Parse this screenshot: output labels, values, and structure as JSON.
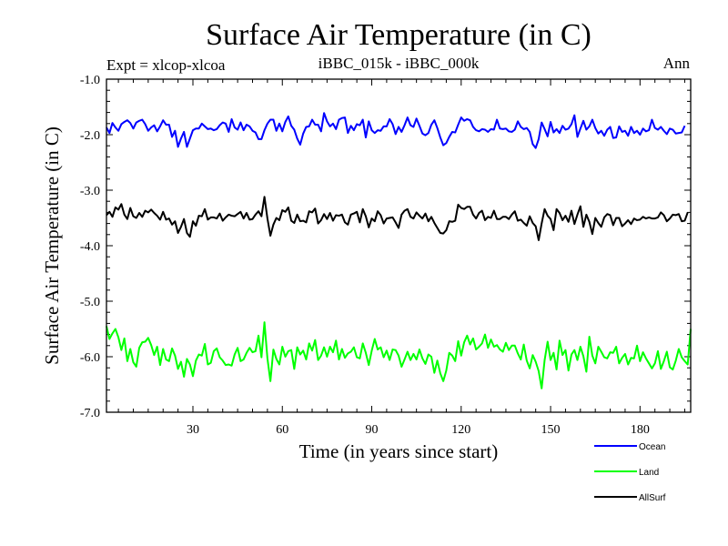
{
  "chart_data": {
    "type": "line",
    "title": "Surface Air Temperature (in C)",
    "subtitle_left": "Expt = xlcop-xlcoa",
    "subtitle_center": "iBBC_015k - iBBC_000k",
    "subtitle_right": "Ann",
    "xlabel": "Time (in years since start)",
    "ylabel": "Surface Air Temperature (in C)",
    "xlim": [
      1,
      197
    ],
    "ylim": [
      -7.0,
      -1.0
    ],
    "xticks": [
      30,
      60,
      90,
      120,
      150,
      180
    ],
    "yticks": [
      -1.0,
      -2.0,
      -3.0,
      -4.0,
      -5.0,
      -6.0,
      -7.0
    ],
    "ytick_labels": [
      "-1.0",
      "-2.0",
      "-3.0",
      "-4.0",
      "-5.0",
      "-6.0",
      "-7.0"
    ],
    "series": [
      {
        "name": "Ocean",
        "color": "#0000ff",
        "values": [
          -1.87,
          -1.97,
          -1.79,
          -1.87,
          -1.93,
          -1.81,
          -1.77,
          -1.74,
          -1.79,
          -1.89,
          -1.78,
          -1.75,
          -1.73,
          -1.81,
          -1.93,
          -1.87,
          -1.83,
          -1.94,
          -1.85,
          -1.74,
          -1.82,
          -1.82,
          -2.04,
          -1.93,
          -2.22,
          -2.07,
          -1.95,
          -2.22,
          -2.07,
          -1.92,
          -1.89,
          -1.89,
          -1.8,
          -1.85,
          -1.9,
          -1.89,
          -1.92,
          -1.9,
          -1.83,
          -1.78,
          -1.8,
          -1.95,
          -1.72,
          -1.87,
          -1.91,
          -1.78,
          -1.92,
          -1.82,
          -1.85,
          -1.93,
          -1.96,
          -2.08,
          -2.08,
          -1.92,
          -1.8,
          -1.73,
          -1.73,
          -1.93,
          -1.8,
          -1.94,
          -1.77,
          -1.67,
          -1.84,
          -1.91,
          -2.07,
          -2.18,
          -1.98,
          -1.86,
          -1.85,
          -1.73,
          -1.82,
          -1.82,
          -1.94,
          -1.61,
          -1.76,
          -1.85,
          -1.8,
          -1.9,
          -1.73,
          -1.7,
          -1.69,
          -1.97,
          -1.84,
          -1.92,
          -1.81,
          -1.83,
          -1.73,
          -2.05,
          -1.76,
          -1.92,
          -1.97,
          -1.92,
          -1.93,
          -1.85,
          -1.85,
          -1.72,
          -1.81,
          -1.99,
          -1.86,
          -1.95,
          -1.83,
          -1.69,
          -1.83,
          -1.86,
          -1.71,
          -1.84,
          -1.98,
          -2.01,
          -1.97,
          -1.82,
          -1.74,
          -1.88,
          -2.05,
          -2.19,
          -2.15,
          -2.04,
          -1.95,
          -1.96,
          -1.82,
          -1.69,
          -1.75,
          -1.72,
          -1.74,
          -1.86,
          -1.92,
          -1.94,
          -1.9,
          -1.91,
          -1.95,
          -1.9,
          -1.91,
          -1.73,
          -1.89,
          -1.9,
          -1.89,
          -1.94,
          -1.95,
          -1.91,
          -1.76,
          -1.86,
          -1.9,
          -1.88,
          -1.95,
          -2.17,
          -2.24,
          -2.08,
          -1.78,
          -1.9,
          -2.03,
          -1.77,
          -1.96,
          -1.9,
          -1.97,
          -1.84,
          -1.91,
          -1.89,
          -1.81,
          -1.65,
          -2.04,
          -1.89,
          -1.75,
          -1.91,
          -1.85,
          -1.73,
          -1.88,
          -1.98,
          -1.93,
          -2.02,
          -1.91,
          -1.86,
          -2.06,
          -2.05,
          -1.85,
          -1.95,
          -1.93,
          -2.02,
          -1.86,
          -1.97,
          -1.93,
          -2.0,
          -1.89,
          -1.94,
          -1.92,
          -1.73,
          -1.88,
          -1.91,
          -1.86,
          -1.93,
          -1.99,
          -1.89,
          -1.91,
          -1.98,
          -1.97,
          -1.96,
          -1.84
        ]
      },
      {
        "name": "Land",
        "color": "#00ff00",
        "values": [
          -5.45,
          -5.68,
          -5.58,
          -5.5,
          -5.65,
          -5.88,
          -5.67,
          -6.08,
          -5.86,
          -6.1,
          -6.18,
          -5.84,
          -5.74,
          -5.73,
          -5.66,
          -5.79,
          -5.97,
          -5.82,
          -6.15,
          -5.86,
          -6.05,
          -6.08,
          -5.85,
          -5.98,
          -6.22,
          -6.09,
          -6.36,
          -6.04,
          -6.14,
          -6.35,
          -6.07,
          -5.96,
          -5.98,
          -5.77,
          -6.14,
          -6.11,
          -5.9,
          -5.85,
          -6.01,
          -6.07,
          -6.15,
          -6.14,
          -6.16,
          -5.96,
          -5.84,
          -6.08,
          -6.05,
          -5.93,
          -5.84,
          -5.92,
          -5.9,
          -5.62,
          -6.01,
          -5.38,
          -6.03,
          -6.44,
          -5.87,
          -6.04,
          -6.14,
          -5.82,
          -6.0,
          -5.9,
          -5.88,
          -6.22,
          -5.83,
          -5.96,
          -5.89,
          -6.05,
          -5.76,
          -5.89,
          -5.7,
          -6.06,
          -5.98,
          -5.83,
          -6.0,
          -5.82,
          -5.92,
          -5.71,
          -6.05,
          -5.86,
          -6.02,
          -5.94,
          -5.91,
          -5.83,
          -6.01,
          -6.03,
          -5.76,
          -5.93,
          -6.15,
          -5.89,
          -5.68,
          -5.87,
          -5.83,
          -6.01,
          -5.89,
          -6.06,
          -5.87,
          -5.88,
          -5.98,
          -6.18,
          -6.05,
          -5.91,
          -6.06,
          -5.95,
          -6.05,
          -5.87,
          -6.03,
          -6.13,
          -5.96,
          -6.0,
          -6.29,
          -6.07,
          -6.3,
          -6.44,
          -6.25,
          -5.93,
          -5.98,
          -6.08,
          -5.72,
          -5.98,
          -5.74,
          -5.62,
          -5.78,
          -5.67,
          -5.87,
          -5.82,
          -5.76,
          -5.6,
          -5.84,
          -5.69,
          -5.82,
          -5.79,
          -5.87,
          -5.91,
          -5.75,
          -5.88,
          -5.8,
          -5.8,
          -5.94,
          -6.05,
          -5.78,
          -6.07,
          -6.21,
          -5.97,
          -6.09,
          -6.26,
          -6.57,
          -6.06,
          -5.73,
          -6.06,
          -5.93,
          -6.23,
          -5.71,
          -5.97,
          -5.88,
          -6.25,
          -5.96,
          -5.88,
          -6.06,
          -5.82,
          -5.99,
          -6.27,
          -5.64,
          -5.98,
          -6.12,
          -5.82,
          -5.91,
          -6.01,
          -6.03,
          -5.92,
          -5.93,
          -5.82,
          -6.12,
          -6.02,
          -5.95,
          -6.14,
          -6.02,
          -6.03,
          -5.8,
          -6.08,
          -5.92,
          -6.03,
          -6.12,
          -6.21,
          -6.12,
          -5.9,
          -6.22,
          -6.08,
          -5.91,
          -6.19,
          -6.23,
          -6.07,
          -5.86,
          -6.01,
          -6.08,
          -6.14,
          -5.5
        ]
      },
      {
        "name": "AllSurf",
        "color": "#000000",
        "values": [
          -3.45,
          -3.39,
          -3.48,
          -3.31,
          -3.35,
          -3.25,
          -3.44,
          -3.52,
          -3.32,
          -3.47,
          -3.5,
          -3.41,
          -3.48,
          -3.37,
          -3.4,
          -3.35,
          -3.41,
          -3.46,
          -3.53,
          -3.39,
          -3.53,
          -3.51,
          -3.62,
          -3.56,
          -3.77,
          -3.66,
          -3.52,
          -3.77,
          -3.84,
          -3.56,
          -3.64,
          -3.46,
          -3.47,
          -3.34,
          -3.53,
          -3.49,
          -3.49,
          -3.51,
          -3.42,
          -3.55,
          -3.49,
          -3.44,
          -3.46,
          -3.47,
          -3.43,
          -3.39,
          -3.51,
          -3.41,
          -3.53,
          -3.52,
          -3.44,
          -3.38,
          -3.47,
          -3.12,
          -3.51,
          -3.82,
          -3.62,
          -3.5,
          -3.54,
          -3.36,
          -3.39,
          -3.31,
          -3.55,
          -3.59,
          -3.44,
          -3.56,
          -3.55,
          -3.58,
          -3.38,
          -3.4,
          -3.33,
          -3.6,
          -3.54,
          -3.43,
          -3.52,
          -3.41,
          -3.55,
          -3.45,
          -3.46,
          -3.44,
          -3.58,
          -3.62,
          -3.44,
          -3.42,
          -3.39,
          -3.58,
          -3.34,
          -3.47,
          -3.67,
          -3.51,
          -3.56,
          -3.38,
          -3.45,
          -3.6,
          -3.51,
          -3.5,
          -3.49,
          -3.58,
          -3.68,
          -3.44,
          -3.37,
          -3.34,
          -3.48,
          -3.51,
          -3.4,
          -3.46,
          -3.51,
          -3.42,
          -3.56,
          -3.48,
          -3.59,
          -3.68,
          -3.77,
          -3.78,
          -3.72,
          -3.56,
          -3.57,
          -3.55,
          -3.26,
          -3.32,
          -3.34,
          -3.3,
          -3.3,
          -3.44,
          -3.51,
          -3.41,
          -3.37,
          -3.54,
          -3.48,
          -3.5,
          -3.37,
          -3.52,
          -3.52,
          -3.48,
          -3.48,
          -3.52,
          -3.44,
          -3.38,
          -3.55,
          -3.53,
          -3.59,
          -3.64,
          -3.47,
          -3.59,
          -3.65,
          -3.9,
          -3.6,
          -3.34,
          -3.46,
          -3.52,
          -3.72,
          -3.34,
          -3.41,
          -3.54,
          -3.46,
          -3.57,
          -3.37,
          -3.61,
          -3.44,
          -3.29,
          -3.66,
          -3.44,
          -3.57,
          -3.79,
          -3.5,
          -3.59,
          -3.66,
          -3.49,
          -3.43,
          -3.45,
          -3.63,
          -3.5,
          -3.5,
          -3.65,
          -3.6,
          -3.54,
          -3.61,
          -3.51,
          -3.54,
          -3.53,
          -3.48,
          -3.51,
          -3.49,
          -3.51,
          -3.51,
          -3.49,
          -3.4,
          -3.45,
          -3.56,
          -3.51,
          -3.44,
          -3.45,
          -3.43,
          -3.56,
          -3.55,
          -3.4
        ]
      }
    ]
  }
}
